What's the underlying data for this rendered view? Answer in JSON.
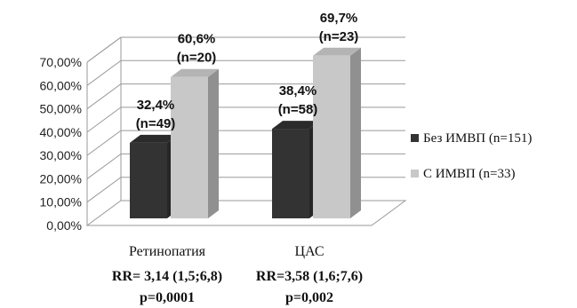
{
  "chart_data": {
    "type": "bar",
    "title": "",
    "xlabel": "",
    "ylabel": "",
    "ylim": [
      0,
      70
    ],
    "y_ticks": [
      "0,00%",
      "10,00%",
      "20,00%",
      "30,00%",
      "40,00%",
      "50,00%",
      "60,00%",
      "70,00%"
    ],
    "grid": true,
    "three_d": true,
    "legend_position": "right",
    "categories": [
      {
        "name": "Ретинопатия",
        "rr": "RR= 3,14 (1,5;6,8)",
        "p": "p=0,0001"
      },
      {
        "name": "ЦАС",
        "rr": "RR=3,58 (1,6;7,6)",
        "p": "p=0,002"
      }
    ],
    "series": [
      {
        "name": "Без ИМВП (n=151)",
        "color": "#333333",
        "values": [
          32.4,
          38.4
        ],
        "labels": [
          [
            "32,4%",
            "(n=49)"
          ],
          [
            "38,4%",
            "(n=58)"
          ]
        ]
      },
      {
        "name": "С ИМВП (n=33)",
        "color": "#c8c8c8",
        "values": [
          60.6,
          69.7
        ],
        "labels": [
          [
            "60,6%",
            "(n=20)"
          ],
          [
            "69,7%",
            "(n=23)"
          ]
        ]
      }
    ]
  }
}
